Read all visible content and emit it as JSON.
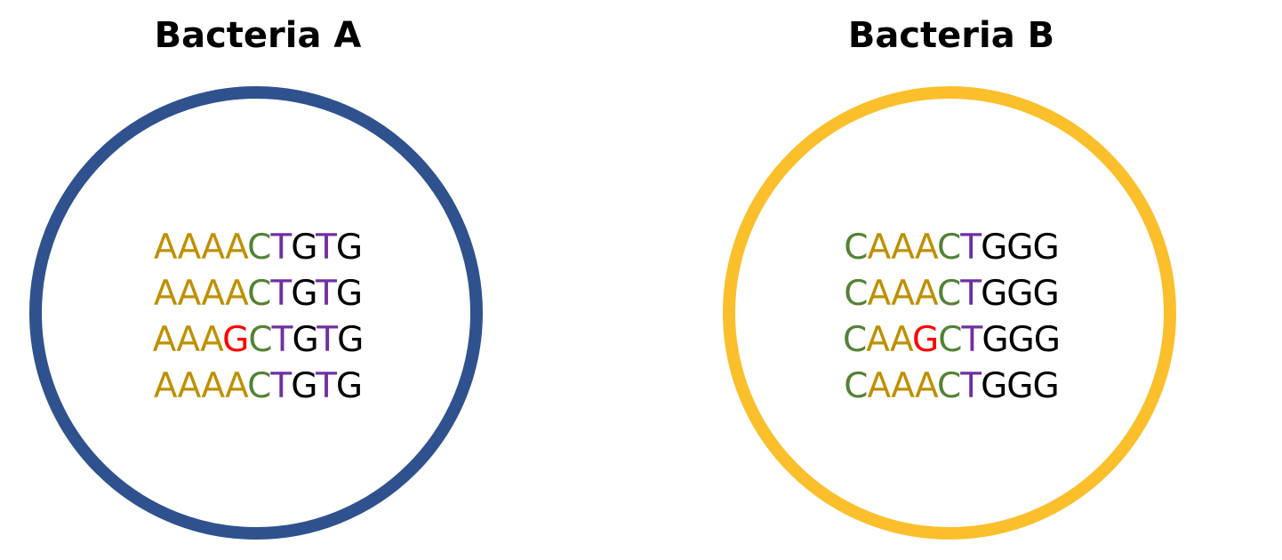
{
  "colors": {
    "adenine": "#BF9000",
    "cytosine": "#548235",
    "thymine": "#7030A0",
    "guanine": "#000000",
    "mutation": "#FF0000"
  },
  "bacteria": [
    {
      "title": "Bacteria A",
      "ring_color": "#2F528F",
      "sequences": [
        [
          [
            "AAAA",
            "adenine"
          ],
          [
            "C",
            "cytosine"
          ],
          [
            "T",
            "thymine"
          ],
          [
            "G",
            "guanine"
          ],
          [
            "T",
            "thymine"
          ],
          [
            "G",
            "guanine"
          ]
        ],
        [
          [
            "AAAA",
            "adenine"
          ],
          [
            "C",
            "cytosine"
          ],
          [
            "T",
            "thymine"
          ],
          [
            "G",
            "guanine"
          ],
          [
            "T",
            "thymine"
          ],
          [
            "G",
            "guanine"
          ]
        ],
        [
          [
            "AAA",
            "adenine"
          ],
          [
            "G",
            "mutation"
          ],
          [
            "C",
            "cytosine"
          ],
          [
            "T",
            "thymine"
          ],
          [
            "G",
            "guanine"
          ],
          [
            "T",
            "thymine"
          ],
          [
            "G",
            "guanine"
          ]
        ],
        [
          [
            "AAAA",
            "adenine"
          ],
          [
            "C",
            "cytosine"
          ],
          [
            "T",
            "thymine"
          ],
          [
            "G",
            "guanine"
          ],
          [
            "T",
            "thymine"
          ],
          [
            "G",
            "guanine"
          ]
        ]
      ]
    },
    {
      "title": "Bacteria B",
      "ring_color": "#FBBF2C",
      "sequences": [
        [
          [
            "C",
            "cytosine"
          ],
          [
            "AAA",
            "adenine"
          ],
          [
            "C",
            "cytosine"
          ],
          [
            "T",
            "thymine"
          ],
          [
            "GGG",
            "guanine"
          ]
        ],
        [
          [
            "C",
            "cytosine"
          ],
          [
            "AAA",
            "adenine"
          ],
          [
            "C",
            "cytosine"
          ],
          [
            "T",
            "thymine"
          ],
          [
            "GGG",
            "guanine"
          ]
        ],
        [
          [
            "C",
            "cytosine"
          ],
          [
            "AA",
            "adenine"
          ],
          [
            "G",
            "mutation"
          ],
          [
            "C",
            "cytosine"
          ],
          [
            "T",
            "thymine"
          ],
          [
            "GGG",
            "guanine"
          ]
        ],
        [
          [
            "C",
            "cytosine"
          ],
          [
            "AAA",
            "adenine"
          ],
          [
            "C",
            "cytosine"
          ],
          [
            "T",
            "thymine"
          ],
          [
            "GGG",
            "guanine"
          ]
        ]
      ]
    }
  ]
}
